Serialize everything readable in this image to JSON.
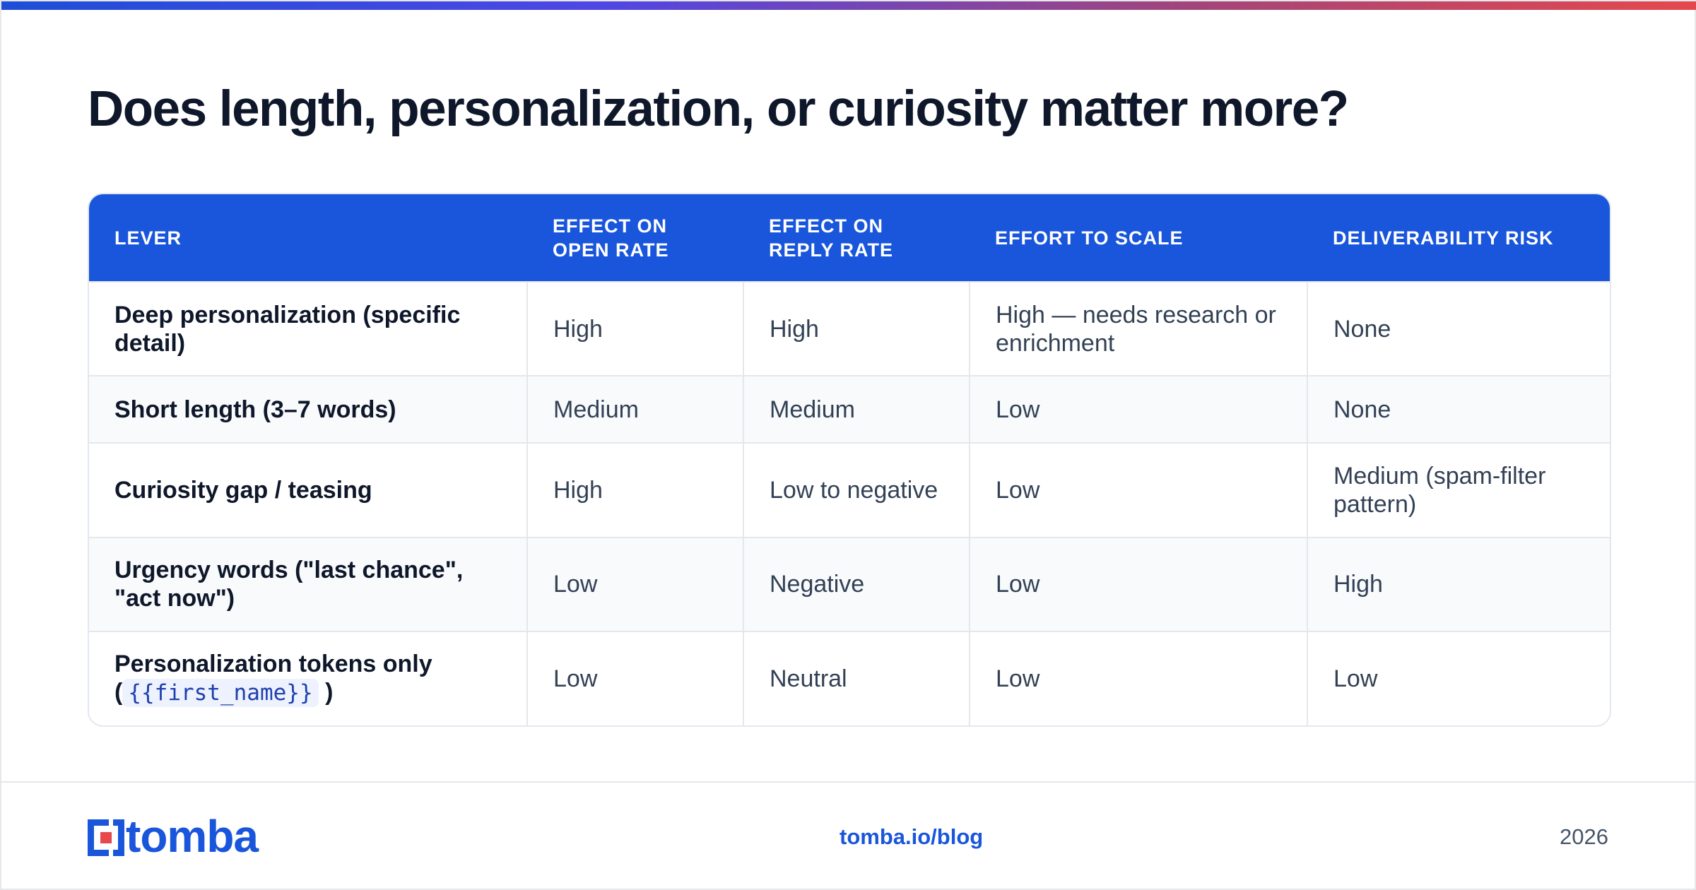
{
  "title": "Does length, personalization, or curiosity matter more?",
  "table": {
    "headers": [
      "LEVER",
      "EFFECT ON\nOPEN RATE",
      "EFFECT ON\nREPLY RATE",
      "EFFORT TO SCALE",
      "DELIVERABILITY RISK"
    ],
    "rows": [
      {
        "lever": "Deep personalization (specific detail)",
        "open": "High",
        "reply": "High",
        "effort": "High — needs research or enrichment",
        "risk": "None"
      },
      {
        "lever": "Short length (3–7 words)",
        "open": "Medium",
        "reply": "Medium",
        "effort": "Low",
        "risk": "None"
      },
      {
        "lever": "Curiosity gap / teasing",
        "open": "High",
        "reply": "Low to negative",
        "effort": "Low",
        "risk": "Medium (spam-filter pattern)"
      },
      {
        "lever": "Urgency words (\"last chance\", \"act now\")",
        "open": "Low",
        "reply": "Negative",
        "effort": "Low",
        "risk": "High"
      },
      {
        "lever_prefix": "Personalization tokens only (",
        "lever_code": "{{first_name}}",
        "lever_suffix": ")",
        "open": "Low",
        "reply": "Neutral",
        "effort": "Low",
        "risk": "Low"
      }
    ]
  },
  "footer": {
    "logo_text": "tomba",
    "link": "tomba.io/blog",
    "year": "2026"
  },
  "colors": {
    "accent": "#1a56db",
    "logo_red": "#e5484d"
  }
}
